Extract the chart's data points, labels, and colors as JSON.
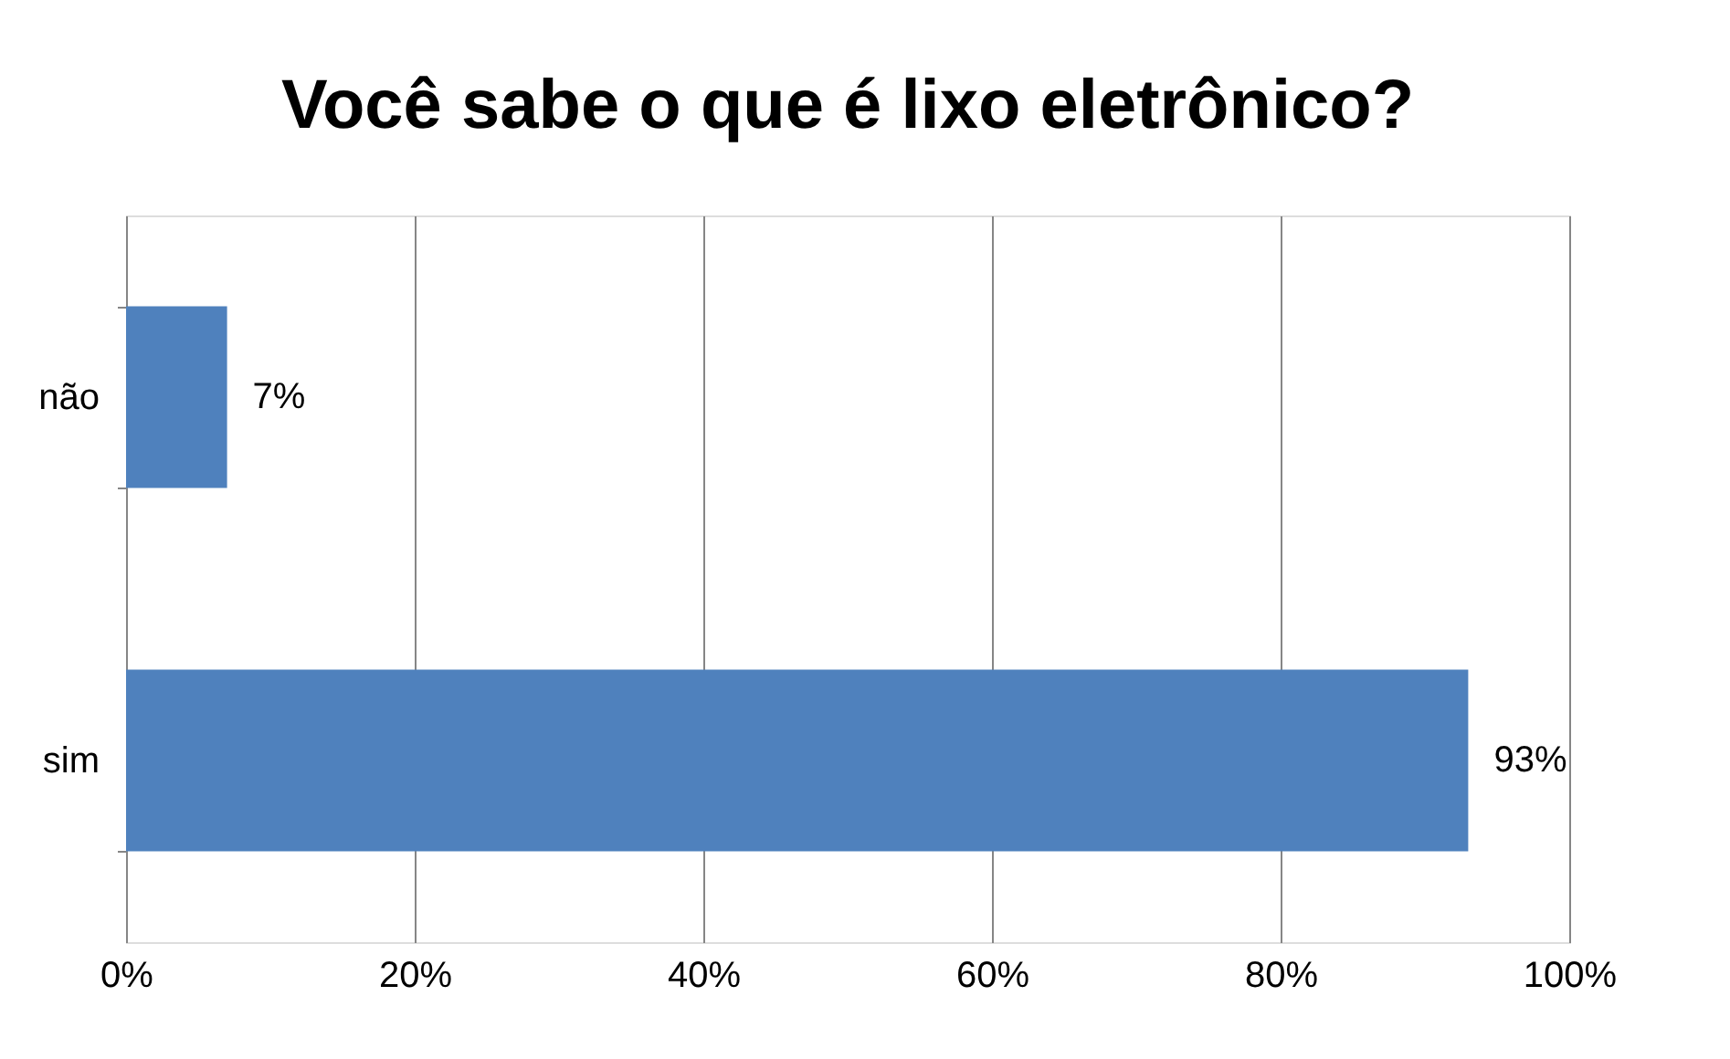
{
  "chart_data": {
    "type": "bar",
    "orientation": "horizontal",
    "title": "Você sabe o que é lixo eletrônico?",
    "categories": [
      "não",
      "sim"
    ],
    "series": [
      {
        "color": "#4f81bd",
        "values": [
          7,
          93
        ]
      }
    ],
    "value_labels": [
      "7%",
      "93%"
    ],
    "xlim": [
      0,
      100
    ],
    "xticks": [
      {
        "value": 0,
        "label": "0%"
      },
      {
        "value": 20,
        "label": "20%"
      },
      {
        "value": 40,
        "label": "40%"
      },
      {
        "value": 60,
        "label": "60%"
      },
      {
        "value": 80,
        "label": "80%"
      },
      {
        "value": 100,
        "label": "100%"
      }
    ],
    "grid": "x"
  }
}
